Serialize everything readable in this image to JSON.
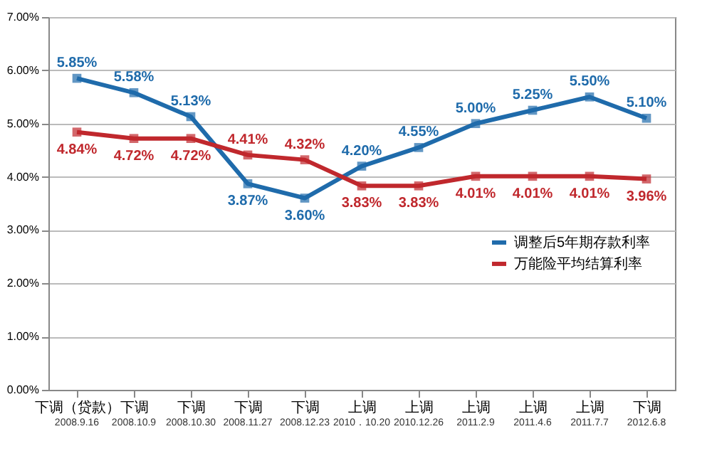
{
  "chart_data": {
    "type": "line",
    "categories": [
      "下调（贷款）\n2008.9.16",
      "下调\n2008.10.9",
      "下调\n2008.10.30",
      "下调\n2008.11.27",
      "下调\n2008.12.23",
      "上调\n2010．10.20",
      "上调\n2010.12.26",
      "上调\n2011.2.9",
      "上调\n2011.4.6",
      "上调\n2011.7.7",
      "下调\n2012.6.8"
    ],
    "series": [
      {
        "name": "调整后5年期存款利率",
        "color": "#1f6bab",
        "values": [
          5.85,
          5.58,
          5.13,
          3.87,
          3.6,
          4.2,
          4.55,
          5.0,
          5.25,
          5.5,
          5.1
        ],
        "value_labels": [
          "5.85%",
          "5.58%",
          "5.13%",
          "3.87%",
          "3.60%",
          "4.20%",
          "4.55%",
          "5.00%",
          "5.25%",
          "5.50%",
          "5.10%"
        ]
      },
      {
        "name": "万能险平均结算利率",
        "color": "#c0282d",
        "values": [
          4.84,
          4.72,
          4.72,
          4.41,
          4.32,
          3.83,
          3.83,
          4.01,
          4.01,
          4.01,
          3.96
        ],
        "value_labels": [
          "4.84%",
          "4.72%",
          "4.72%",
          "4.41%",
          "4.32%",
          "3.83%",
          "3.83%",
          "4.01%",
          "4.01%",
          "4.01%",
          "3.96%"
        ]
      }
    ],
    "ylim": [
      0,
      7
    ],
    "yticks": [
      {
        "value": 0,
        "label": "0.00%"
      },
      {
        "value": 1,
        "label": "1.00%"
      },
      {
        "value": 2,
        "label": "2.00%"
      },
      {
        "value": 3,
        "label": "3.00%"
      },
      {
        "value": 4,
        "label": "4.00%"
      },
      {
        "value": 5,
        "label": "5.00%"
      },
      {
        "value": 6,
        "label": "6.00%"
      },
      {
        "value": 7,
        "label": "7.00%"
      }
    ],
    "grid": "y",
    "legend": "right",
    "marker": "square",
    "line_style": "solid"
  }
}
